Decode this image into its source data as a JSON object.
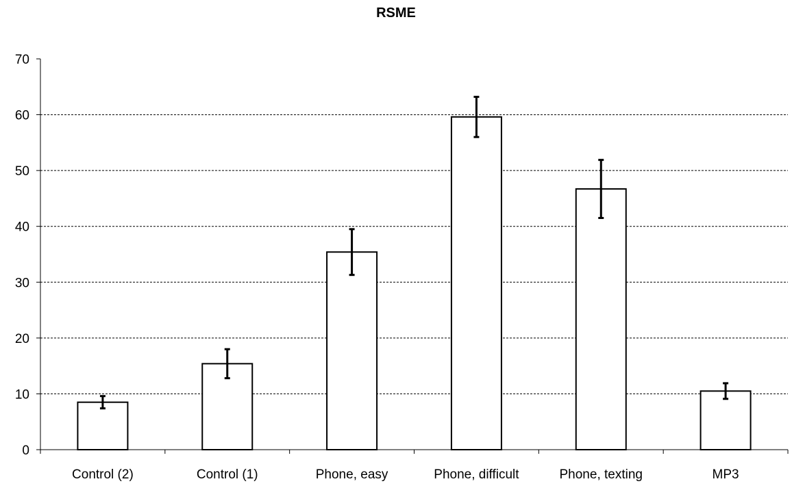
{
  "chart_data": {
    "type": "bar",
    "title": "RSME",
    "xlabel": "",
    "ylabel": "",
    "ylim": [
      0,
      70
    ],
    "yticks": [
      "0",
      "10",
      "20",
      "30",
      "40",
      "50",
      "60",
      "70"
    ],
    "grid": true,
    "categories": [
      "Control (2)",
      "Control (1)",
      "Phone, easy",
      "Phone, difficult",
      "Phone, texting",
      "MP3"
    ],
    "values": [
      8.5,
      15.4,
      35.4,
      59.6,
      46.7,
      10.5
    ],
    "error": [
      1.1,
      2.6,
      4.1,
      3.6,
      5.2,
      1.4
    ],
    "bar_fill": "#ffffff",
    "bar_stroke": "#000000"
  }
}
